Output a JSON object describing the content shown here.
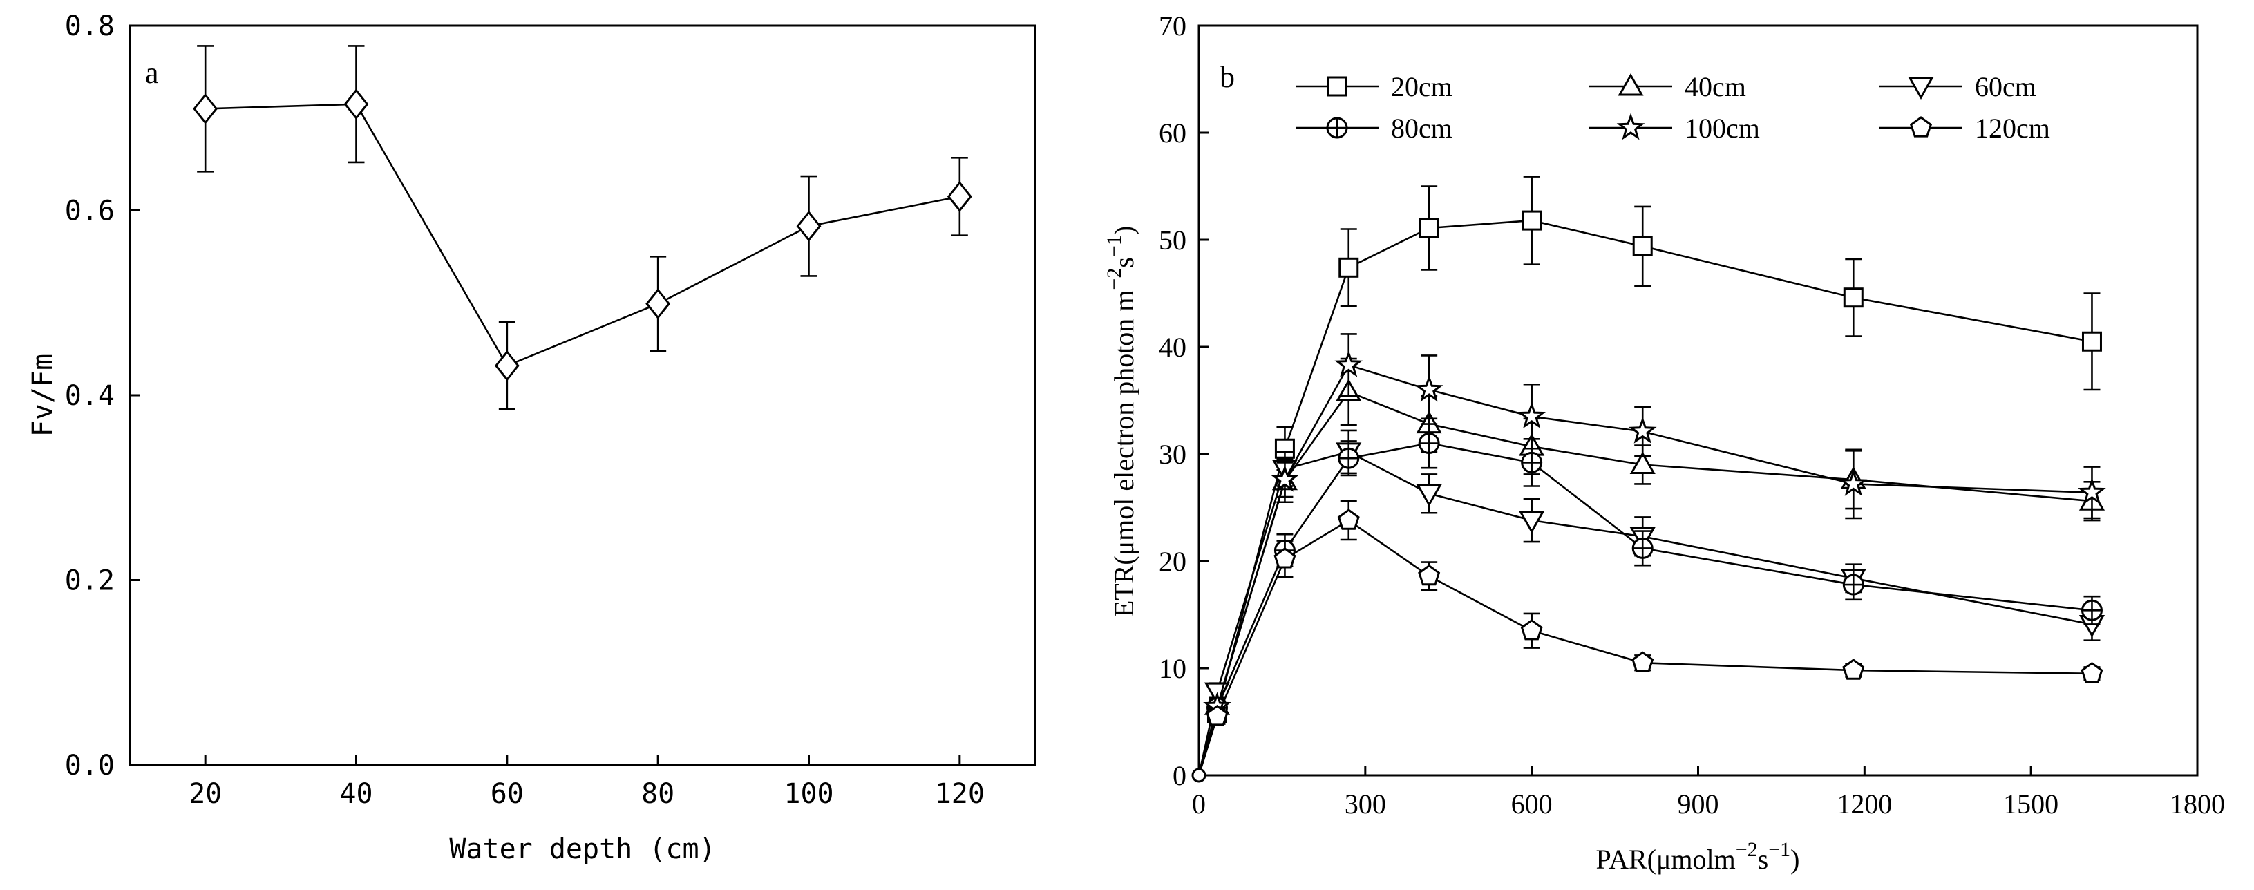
{
  "chart_data": [
    {
      "type": "line",
      "panel_label": "a",
      "title": "",
      "xlabel": "Water depth (cm)",
      "ylabel": "Fv/Fm",
      "xlim": [
        10,
        130
      ],
      "ylim": [
        0.0,
        0.8
      ],
      "x_ticks": [
        20,
        40,
        60,
        80,
        100,
        120
      ],
      "x_tick_labels": [
        "20",
        "40",
        "60",
        "80",
        "100",
        "120"
      ],
      "y_ticks": [
        0.0,
        0.2,
        0.4,
        0.6,
        0.8
      ],
      "y_tick_labels": [
        "0.0",
        "0.2",
        "0.4",
        "0.6",
        "0.8"
      ],
      "grid": false,
      "series": [
        {
          "name": "Fv/Fm",
          "marker": "diamond",
          "x": [
            20,
            40,
            60,
            80,
            100,
            120
          ],
          "values": [
            0.71,
            0.715,
            0.432,
            0.499,
            0.583,
            0.615
          ],
          "error": [
            0.068,
            0.063,
            0.047,
            0.051,
            0.054,
            0.042
          ]
        }
      ]
    },
    {
      "type": "line",
      "panel_label": "b",
      "title": "",
      "xlabel_main": "PAR(μmolm",
      "xlabel_sup": "−2",
      "xlabel_mid": "s",
      "xlabel_sup2": "−1",
      "xlabel_end": ")",
      "ylabel_main": "ETR(μmol electron photon m",
      "ylabel_sup": "−2",
      "ylabel_mid": "s",
      "ylabel_sup2": "−1",
      "ylabel_end": ")",
      "xlim": [
        0,
        1800
      ],
      "ylim": [
        0,
        70
      ],
      "x_ticks": [
        0,
        300,
        600,
        900,
        1200,
        1500,
        1800
      ],
      "x_tick_labels": [
        "0",
        "300",
        "600",
        "900",
        "1200",
        "1500",
        "1800"
      ],
      "y_ticks": [
        0,
        10,
        20,
        30,
        40,
        50,
        60,
        70
      ],
      "y_tick_labels": [
        "0",
        "10",
        "20",
        "30",
        "40",
        "50",
        "60",
        "70"
      ],
      "grid": false,
      "legend_position": "top",
      "x": [
        0,
        33,
        155,
        270,
        415,
        600,
        800,
        1180,
        1610
      ],
      "series": [
        {
          "name": "20cm",
          "marker": "square",
          "values": [
            0,
            5.8,
            30.5,
            47.4,
            51.1,
            51.8,
            49.4,
            44.6,
            40.5
          ],
          "error": [
            0,
            0.8,
            2.0,
            3.6,
            3.9,
            4.1,
            3.7,
            3.6,
            4.5
          ]
        },
        {
          "name": "40cm",
          "marker": "triangle-up",
          "values": [
            0,
            6.5,
            27.5,
            35.8,
            32.8,
            30.7,
            29.0,
            27.6,
            25.6
          ],
          "error": [
            0,
            0.8,
            2.0,
            3.1,
            2.6,
            2.6,
            1.8,
            2.7,
            1.8
          ]
        },
        {
          "name": "60cm",
          "marker": "triangle-down",
          "values": [
            0,
            7.8,
            28.6,
            30.2,
            26.3,
            23.8,
            22.3,
            18.4,
            14.1
          ],
          "error": [
            0,
            0.8,
            1.6,
            2.0,
            1.8,
            2.0,
            1.8,
            1.3,
            1.5
          ]
        },
        {
          "name": "80cm",
          "marker": "circle-cross",
          "values": [
            0,
            6.3,
            21.0,
            29.6,
            31.0,
            29.2,
            21.2,
            17.8,
            15.4
          ],
          "error": [
            0,
            0.8,
            1.5,
            1.6,
            2.3,
            2.2,
            1.6,
            1.4,
            1.3
          ]
        },
        {
          "name": "100cm",
          "marker": "star",
          "values": [
            0,
            6.4,
            27.6,
            38.3,
            36.0,
            33.5,
            32.1,
            27.2,
            26.4
          ],
          "error": [
            0,
            0.8,
            1.6,
            2.9,
            3.2,
            3.0,
            2.3,
            3.2,
            2.4
          ]
        },
        {
          "name": "120cm",
          "marker": "pentagon",
          "values": [
            0,
            5.5,
            20.2,
            23.8,
            18.6,
            13.5,
            10.5,
            9.8,
            9.5
          ],
          "error": [
            0,
            0.7,
            1.7,
            1.8,
            1.3,
            1.6,
            0.7,
            0.6,
            0.6
          ]
        }
      ]
    }
  ]
}
